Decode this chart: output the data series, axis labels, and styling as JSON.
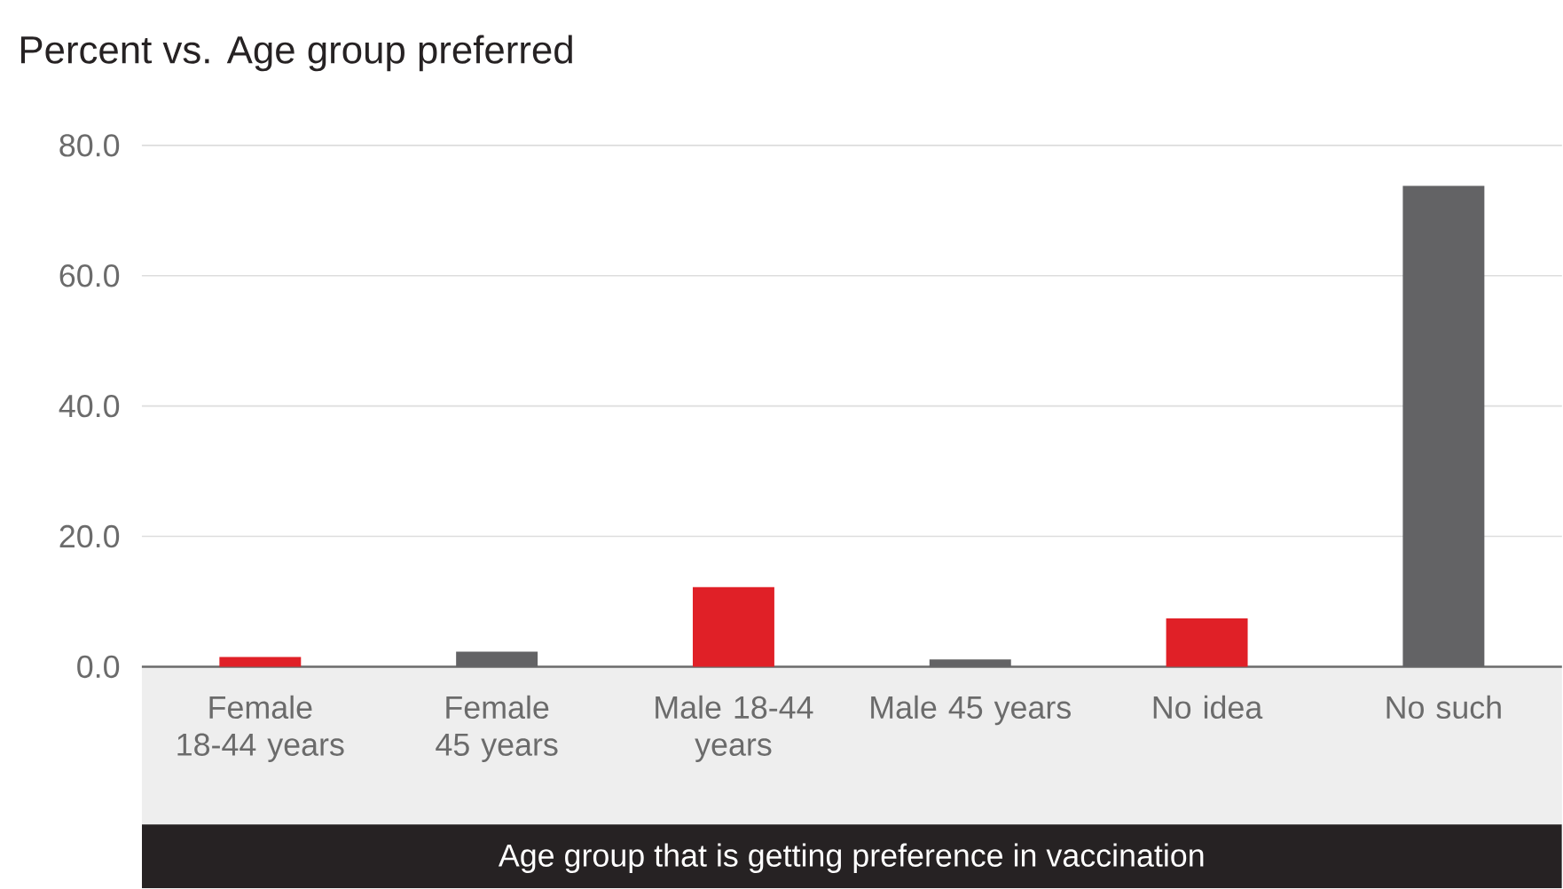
{
  "chart_data": {
    "type": "bar",
    "title": "Percent vs. Age group preferred",
    "xlabel": "Age group that is getting preference in vaccination",
    "categories": [
      "Female 18-44 years",
      "Female 45 years",
      "Male 18-44 years",
      "Male 45 years",
      "No idea",
      "No such"
    ],
    "values": [
      1.5,
      2.3,
      12.2,
      1.1,
      7.4,
      73.8
    ],
    "colors": [
      "#e02027",
      "#636365",
      "#e02027",
      "#636365",
      "#e02027",
      "#636365"
    ],
    "ylim": [
      0,
      80
    ],
    "yticks": [
      {
        "value": 0,
        "label": "0.0"
      },
      {
        "value": 20,
        "label": "20.0"
      },
      {
        "value": 40,
        "label": "40.0"
      },
      {
        "value": 60,
        "label": "60.0"
      },
      {
        "value": 80,
        "label": "80.0"
      }
    ],
    "grid": "y"
  }
}
